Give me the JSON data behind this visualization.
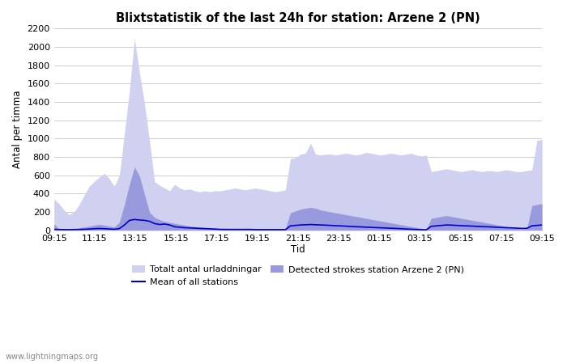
{
  "title": "Blixtstatistik of the last 24h for station: Arzene 2 (PN)",
  "xlabel": "Tid",
  "ylabel": "Antal per timma",
  "xlim_labels": [
    "09:15",
    "11:15",
    "13:15",
    "15:15",
    "17:15",
    "19:15",
    "21:15",
    "23:15",
    "01:15",
    "03:15",
    "05:15",
    "07:15",
    "09:15"
  ],
  "ylim": [
    0,
    2200
  ],
  "yticks": [
    0,
    200,
    400,
    600,
    800,
    1000,
    1200,
    1400,
    1600,
    1800,
    2000,
    2200
  ],
  "background_color": "#ffffff",
  "fill_total_color": "#d0d0f0",
  "fill_station_color": "#9999dd",
  "line_mean_color": "#0000cc",
  "watermark": "www.lightningmaps.org",
  "legend_total": "Totalt antal urladdningar",
  "legend_mean": "Mean of all stations",
  "legend_station": "Detected strokes station Arzene 2 (PN)",
  "total_data": [
    340,
    290,
    220,
    170,
    200,
    280,
    380,
    480,
    530,
    580,
    620,
    560,
    480,
    600,
    1050,
    1520,
    2090,
    1720,
    1380,
    970,
    530,
    490,
    460,
    430,
    500,
    460,
    440,
    450,
    430,
    420,
    430,
    420,
    430,
    430,
    440,
    450,
    460,
    450,
    440,
    450,
    460,
    450,
    440,
    430,
    420,
    430,
    440,
    780,
    790,
    830,
    840,
    950,
    830,
    820,
    830,
    830,
    820,
    830,
    840,
    830,
    820,
    830,
    850,
    840,
    830,
    820,
    830,
    840,
    830,
    820,
    830,
    840,
    820,
    810,
    820,
    640,
    650,
    660,
    670,
    660,
    650,
    640,
    650,
    660,
    650,
    640,
    650,
    650,
    640,
    650,
    660,
    650,
    640,
    640,
    650,
    660,
    980,
    990,
    1000
  ],
  "station_data": [
    70,
    15,
    8,
    8,
    15,
    25,
    35,
    45,
    55,
    65,
    55,
    45,
    35,
    90,
    280,
    500,
    690,
    590,
    390,
    195,
    140,
    115,
    95,
    85,
    75,
    65,
    55,
    45,
    40,
    35,
    30,
    25,
    20,
    18,
    18,
    18,
    18,
    18,
    18,
    18,
    18,
    18,
    18,
    18,
    18,
    18,
    18,
    190,
    210,
    230,
    240,
    250,
    240,
    220,
    210,
    200,
    190,
    180,
    170,
    160,
    150,
    140,
    130,
    120,
    110,
    100,
    90,
    80,
    70,
    60,
    50,
    40,
    30,
    20,
    10,
    130,
    140,
    150,
    160,
    150,
    140,
    130,
    120,
    110,
    100,
    90,
    80,
    70,
    60,
    50,
    40,
    30,
    20,
    10,
    18,
    270,
    280,
    290
  ],
  "mean_data": [
    10,
    8,
    7,
    7,
    8,
    9,
    11,
    13,
    17,
    19,
    17,
    14,
    11,
    18,
    58,
    108,
    118,
    112,
    108,
    98,
    73,
    63,
    68,
    58,
    38,
    33,
    28,
    26,
    23,
    20,
    18,
    16,
    13,
    10,
    9,
    9,
    9,
    9,
    9,
    9,
    7,
    7,
    7,
    7,
    7,
    7,
    7,
    48,
    53,
    58,
    60,
    63,
    60,
    58,
    56,
    53,
    50,
    48,
    45,
    42,
    39,
    37,
    34,
    32,
    29,
    27,
    25,
    22,
    20,
    17,
    14,
    11,
    9,
    7,
    5,
    43,
    48,
    53,
    58,
    56,
    53,
    50,
    48,
    46,
    43,
    40,
    38,
    36,
    33,
    30,
    28,
    26,
    23,
    20,
    21,
    48,
    53,
    58
  ]
}
